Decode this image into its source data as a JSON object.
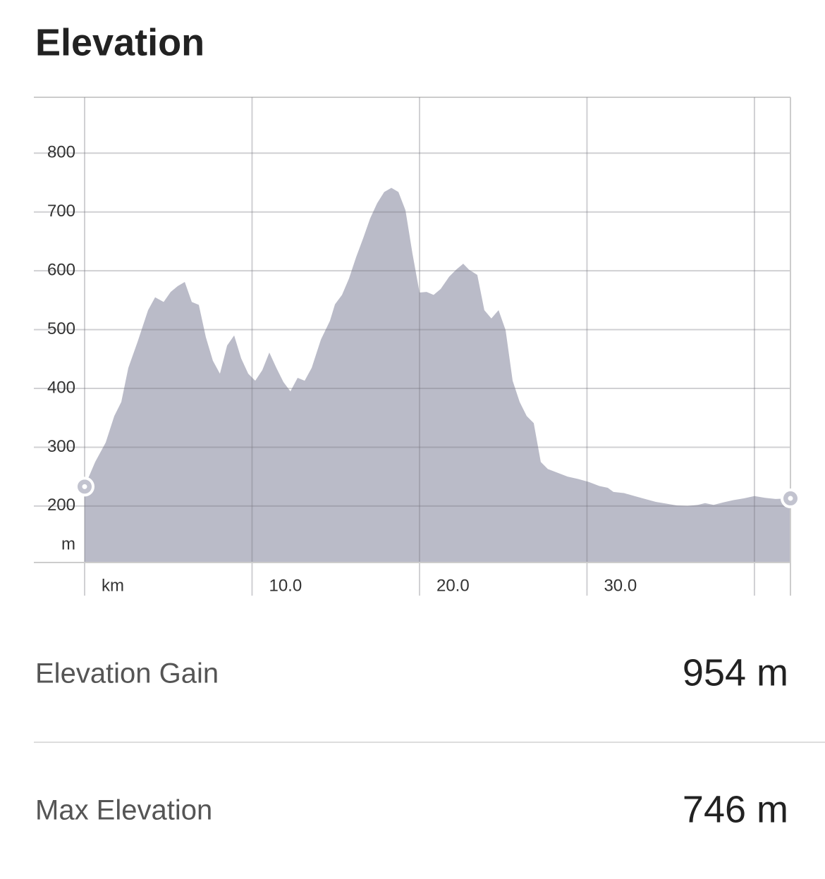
{
  "chart_data": {
    "type": "area",
    "title": "Elevation",
    "y_label": "m",
    "x_label": "km",
    "x": [
      0,
      0.63,
      1.26,
      1.77,
      2.19,
      2.61,
      3.16,
      3.79,
      4.21,
      4.72,
      5.14,
      5.56,
      5.98,
      6.4,
      6.82,
      7.24,
      7.66,
      8.08,
      8.51,
      8.93,
      9.35,
      9.77,
      10.19,
      10.61,
      11.03,
      11.45,
      11.87,
      12.29,
      12.72,
      13.14,
      13.56,
      14.11,
      14.65,
      14.95,
      15.37,
      15.79,
      16.21,
      16.63,
      17.05,
      17.47,
      17.89,
      18.32,
      18.74,
      19.16,
      19.58,
      20.0,
      20.42,
      20.84,
      21.26,
      21.77,
      22.19,
      22.61,
      22.95,
      23.45,
      23.87,
      24.29,
      24.72,
      25.14,
      25.56,
      25.98,
      26.4,
      26.82,
      27.24,
      27.66,
      28.21,
      28.84,
      29.47,
      30.11,
      30.74,
      31.24,
      31.58,
      32.21,
      32.84,
      33.47,
      34.11,
      34.74,
      35.37,
      36.0,
      36.63,
      37.05,
      37.56,
      38.11,
      38.74,
      39.37,
      40.0,
      40.63,
      41.26,
      42.15
    ],
    "values": [
      233,
      275,
      308,
      353,
      377,
      435,
      479,
      533,
      555,
      547,
      564,
      574,
      581,
      547,
      542,
      487,
      447,
      425,
      473,
      490,
      451,
      425,
      413,
      431,
      461,
      435,
      411,
      395,
      418,
      413,
      435,
      483,
      515,
      543,
      559,
      587,
      623,
      655,
      689,
      715,
      734,
      741,
      734,
      703,
      629,
      563,
      564,
      559,
      569,
      590,
      602,
      612,
      602,
      593,
      533,
      519,
      533,
      499,
      413,
      377,
      353,
      341,
      275,
      263,
      257,
      250,
      246,
      241,
      234,
      231,
      224,
      222,
      217,
      212,
      207,
      204,
      201,
      200,
      202,
      205,
      202,
      206,
      210,
      213,
      217,
      214,
      212,
      213
    ],
    "color": "#babbc8",
    "xlim": [
      0,
      42.15
    ],
    "ylim": [
      104,
      895
    ],
    "xticks": [
      {
        "value": 10,
        "label": "10.0"
      },
      {
        "value": 20,
        "label": "20.0"
      },
      {
        "value": 30,
        "label": "30.0"
      },
      {
        "value": 40,
        "label": null
      }
    ],
    "yticks": [
      200,
      300,
      400,
      500,
      600,
      700,
      800
    ],
    "grid": true
  },
  "stats": [
    {
      "label": "Elevation Gain",
      "value": "954 m"
    },
    {
      "label": "Max Elevation",
      "value": "746 m"
    }
  ]
}
